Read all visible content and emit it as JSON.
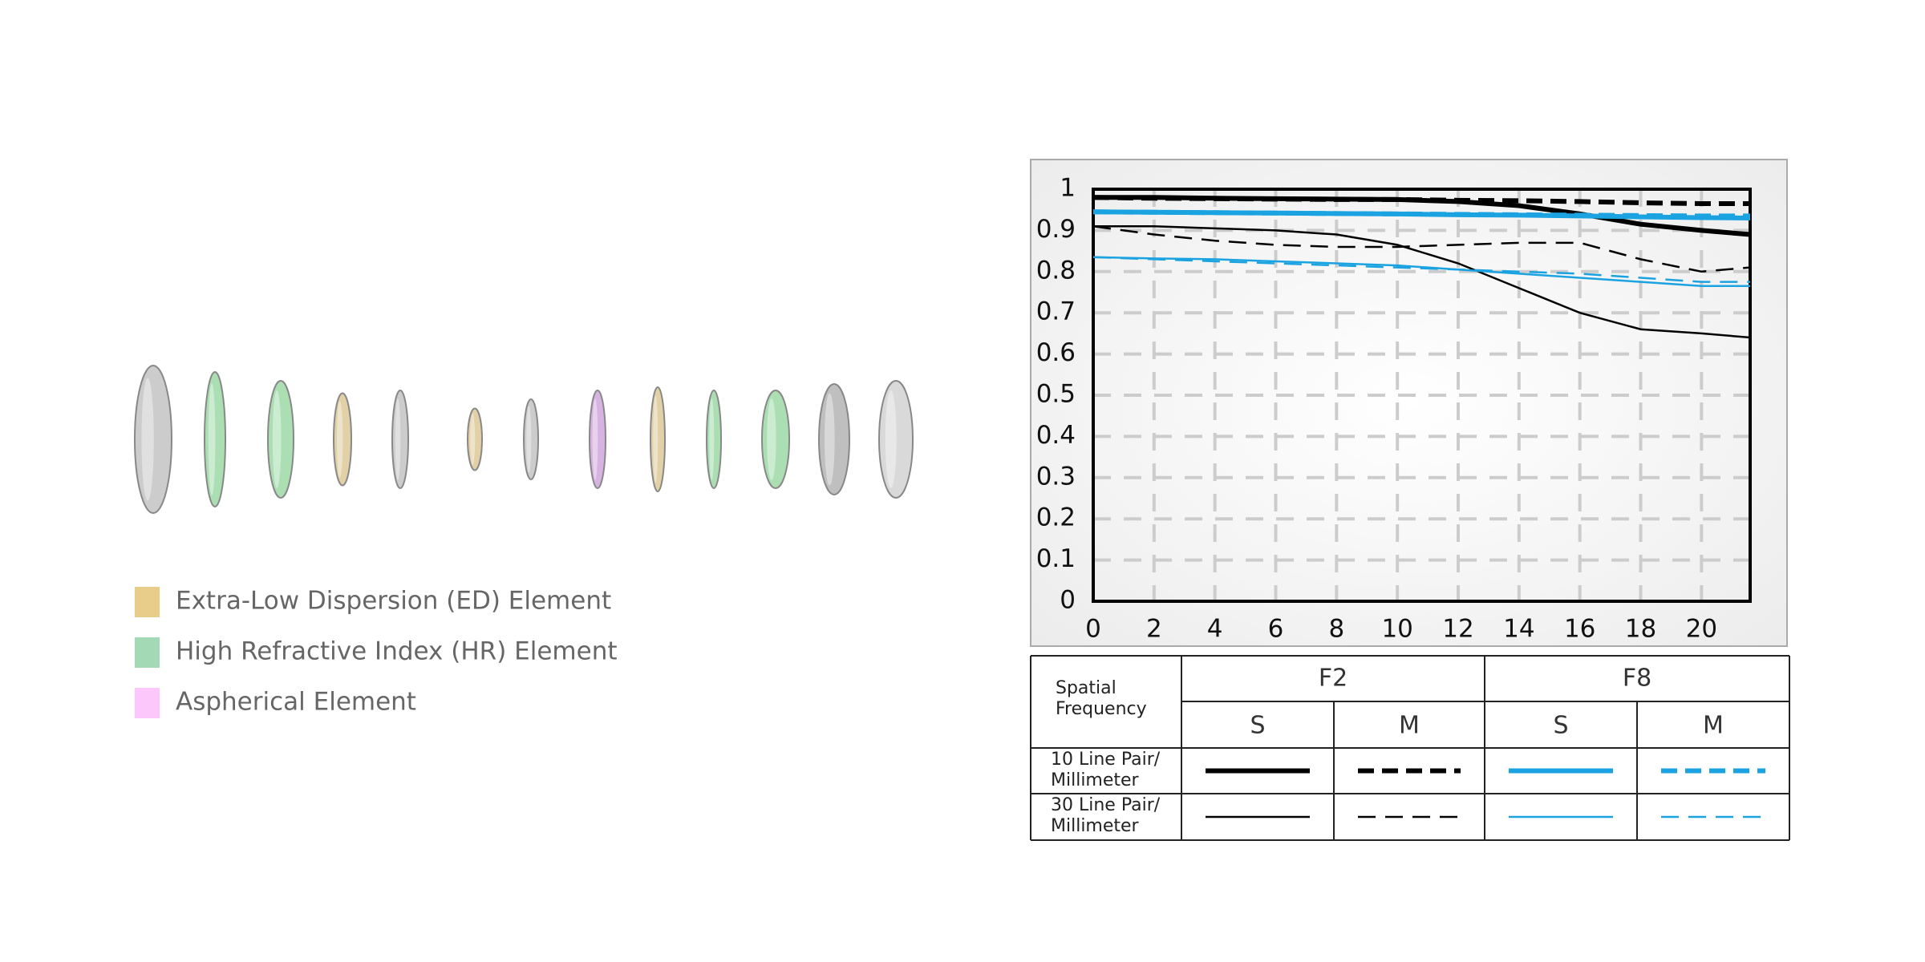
{
  "chart_data": {
    "type": "line",
    "x": [
      0,
      2,
      4,
      6,
      8,
      10,
      12,
      14,
      16,
      18,
      20,
      21.6
    ],
    "xlim": [
      0,
      21.6
    ],
    "xticks": [
      0,
      2,
      4,
      6,
      8,
      10,
      12,
      14,
      16,
      18,
      20
    ],
    "ylim": [
      0,
      1
    ],
    "yticks": [
      0,
      0.1,
      0.2,
      0.3,
      0.4,
      0.5,
      0.6,
      0.7,
      0.8,
      0.9,
      1
    ],
    "grid": true,
    "series": [
      {
        "color": "#000000",
        "weight": "thick",
        "dashed": false,
        "values": [
          0.98,
          0.98,
          0.978,
          0.977,
          0.976,
          0.975,
          0.97,
          0.96,
          0.94,
          0.915,
          0.9,
          0.89
        ]
      },
      {
        "color": "#000000",
        "weight": "thick",
        "dashed": true,
        "values": [
          0.98,
          0.978,
          0.977,
          0.976,
          0.975,
          0.975,
          0.973,
          0.972,
          0.97,
          0.967,
          0.965,
          0.965
        ]
      },
      {
        "color": "#1aa3e0",
        "weight": "thick",
        "dashed": false,
        "values": [
          0.945,
          0.944,
          0.943,
          0.942,
          0.941,
          0.94,
          0.938,
          0.937,
          0.935,
          0.933,
          0.931,
          0.93
        ]
      },
      {
        "color": "#1aa3e0",
        "weight": "thick",
        "dashed": true,
        "values": [
          0.945,
          0.944,
          0.943,
          0.942,
          0.941,
          0.94,
          0.939,
          0.938,
          0.937,
          0.936,
          0.935,
          0.935
        ]
      },
      {
        "color": "#000000",
        "weight": "thin",
        "dashed": false,
        "values": [
          0.91,
          0.91,
          0.905,
          0.9,
          0.89,
          0.865,
          0.82,
          0.76,
          0.7,
          0.66,
          0.65,
          0.64
        ]
      },
      {
        "color": "#000000",
        "weight": "thin",
        "dashed": true,
        "values": [
          0.91,
          0.89,
          0.875,
          0.865,
          0.86,
          0.86,
          0.865,
          0.87,
          0.87,
          0.83,
          0.8,
          0.81
        ]
      },
      {
        "color": "#1aa3e0",
        "weight": "thin",
        "dashed": false,
        "values": [
          0.835,
          0.832,
          0.83,
          0.825,
          0.82,
          0.815,
          0.805,
          0.795,
          0.785,
          0.775,
          0.765,
          0.765
        ]
      },
      {
        "color": "#1aa3e0",
        "weight": "thin",
        "dashed": true,
        "values": [
          0.835,
          0.83,
          0.825,
          0.82,
          0.815,
          0.81,
          0.805,
          0.8,
          0.795,
          0.785,
          0.775,
          0.775
        ]
      }
    ]
  },
  "legend": [
    {
      "label": "Extra-Low Dispersion (ED) Element",
      "color": "#e8cc8a"
    },
    {
      "label": "High Refractive Index (HR) Element",
      "color": "#a3d9b5"
    },
    {
      "label": "Aspherical Element",
      "color": "#fcc8fc"
    }
  ],
  "table": {
    "corner": [
      "Spatial",
      "Frequency"
    ],
    "groups": [
      "F2",
      "F8"
    ],
    "subheaders": [
      "S",
      "M",
      "S",
      "M"
    ],
    "rows": [
      [
        "10 Line Pair/",
        "Millimeter"
      ],
      [
        "30 Line Pair/",
        "Millimeter"
      ]
    ]
  }
}
